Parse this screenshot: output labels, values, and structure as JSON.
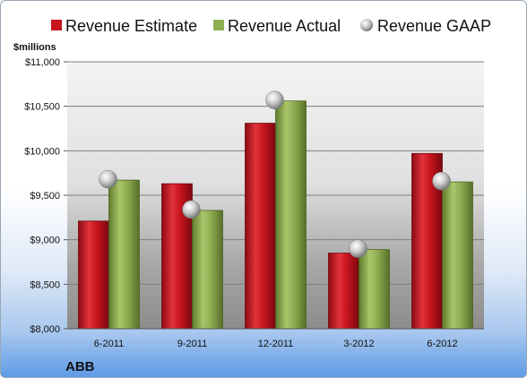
{
  "chart_data": {
    "type": "bar",
    "title": "",
    "ylabel": "$millions",
    "xlabel": "",
    "company": "ABB",
    "categories": [
      "6-2011",
      "9-2011",
      "12-2011",
      "3-2012",
      "6-2012"
    ],
    "ylim": [
      8000,
      11000
    ],
    "yticks": [
      8000,
      8500,
      9000,
      9500,
      10000,
      10500,
      11000
    ],
    "ytick_labels": [
      "$8,000",
      "$8,500",
      "$9,000",
      "$9,500",
      "$10,000",
      "$10,500",
      "$11,000"
    ],
    "grid": true,
    "legend": "top",
    "series": [
      {
        "name": "Revenue Estimate",
        "kind": "bar",
        "color": "#c8141e",
        "values": [
          9210,
          9630,
          10310,
          8850,
          9970
        ]
      },
      {
        "name": "Revenue Actual",
        "kind": "bar",
        "color": "#8fae52",
        "values": [
          9670,
          9330,
          10560,
          8890,
          9650
        ]
      },
      {
        "name": "Revenue GAAP",
        "kind": "marker",
        "color": "#b9b9b9",
        "values": [
          9680,
          9340,
          10570,
          8900,
          9660
        ]
      }
    ]
  }
}
